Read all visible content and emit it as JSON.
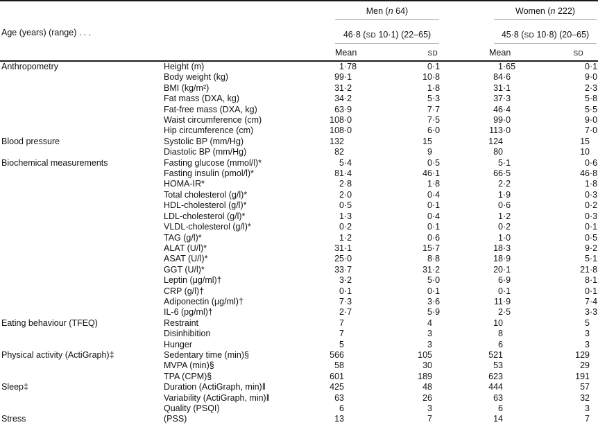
{
  "colors": {
    "heavy_rule": "#1a1a1a",
    "light_rule": "#a8a8a8",
    "text": "#111111",
    "background": "#ffffff"
  },
  "header": {
    "age_row_label": "Age (years) (range) . . .",
    "groups": [
      {
        "id": "men",
        "title_pre": "Men (",
        "title_n": "n",
        "title_post": " 64)",
        "age_pre": "46·8 (",
        "age_sc": "SD",
        "age_post": " 10·1) (22–65)"
      },
      {
        "id": "women",
        "title_pre": "Women (",
        "title_n": "n",
        "title_post": " 222)",
        "age_pre": "45·8 (",
        "age_sc": "SD",
        "age_post": " 10·8) (20–65)"
      }
    ],
    "stat_headers": {
      "mean": "Mean",
      "sd": "SD"
    }
  },
  "value_column_names": [
    "men-mean-value",
    "men-sd-value",
    "women-mean-value",
    "women-sd-value"
  ],
  "sections": [
    {
      "category": "Anthropometry",
      "rows": [
        {
          "variable": "Height (m)",
          "values": [
            "1·78",
            "0·1",
            "1·65",
            "0·1"
          ]
        },
        {
          "variable": "Body weight (kg)",
          "values": [
            "99·1",
            "10·8",
            "84·6",
            "9·0"
          ]
        },
        {
          "variable": "BMI (kg/m²)",
          "values": [
            "31·2",
            "1·8",
            "31·1",
            "2·3"
          ]
        },
        {
          "variable": "Fat mass (DXA, kg)",
          "values": [
            "34·2",
            "5·3",
            "37·3",
            "5·8"
          ]
        },
        {
          "variable": "Fat-free mass (DXA, kg)",
          "values": [
            "63·9",
            "7·7",
            "46·4",
            "5·5"
          ]
        },
        {
          "variable": "Waist circumference (cm)",
          "values": [
            "108·0",
            "7·5",
            "99·0",
            "9·0"
          ]
        },
        {
          "variable": "Hip circumference (cm)",
          "values": [
            "108·0",
            "6·0",
            "113·0",
            "7·0"
          ]
        }
      ]
    },
    {
      "category": "Blood pressure",
      "rows": [
        {
          "variable": "Systolic BP (mm/Hg)",
          "values": [
            "132",
            "15",
            "124",
            "15"
          ]
        },
        {
          "variable": "Diastolic BP (mm/Hg)",
          "values": [
            "82",
            "9",
            "80",
            "10"
          ]
        }
      ]
    },
    {
      "category": "Biochemical measurements",
      "rows": [
        {
          "variable": "Fasting glucose (mmol/l)*",
          "values": [
            "5·4",
            "0·5",
            "5·1",
            "0·6"
          ]
        },
        {
          "variable": "Fasting insulin (pmol/l)*",
          "values": [
            "81·4",
            "46·1",
            "66·5",
            "46·8"
          ]
        },
        {
          "variable": "HOMA-IR*",
          "values": [
            "2·8",
            "1·8",
            "2·2",
            "1·8"
          ]
        },
        {
          "variable": "Total cholesterol (g/l)*",
          "values": [
            "2·0",
            "0·4",
            "1·9",
            "0·3"
          ]
        },
        {
          "variable": "HDL-cholesterol (g/l)*",
          "values": [
            "0·5",
            "0·1",
            "0·6",
            "0·2"
          ]
        },
        {
          "variable": "LDL-cholesterol (g/l)*",
          "values": [
            "1·3",
            "0·4",
            "1·2",
            "0·3"
          ]
        },
        {
          "variable": "VLDL-cholesterol (g/l)*",
          "values": [
            "0·2",
            "0·1",
            "0·2",
            "0·1"
          ]
        },
        {
          "variable": "TAG (g/l)*",
          "values": [
            "1·2",
            "0·6",
            "1·0",
            "0·5"
          ]
        },
        {
          "variable": "ALAT (U/l)*",
          "values": [
            "31·1",
            "15·7",
            "18·3",
            "9·2"
          ]
        },
        {
          "variable": "ASAT (U/l)*",
          "values": [
            "25·0",
            "8·8",
            "18·9",
            "5·1"
          ]
        },
        {
          "variable": "GGT (U/l)*",
          "values": [
            "33·7",
            "31·2",
            "20·1",
            "21·8"
          ]
        },
        {
          "variable": "Leptin (μg/ml)†",
          "values": [
            "3·2",
            "5·0",
            "6·9",
            "8·1"
          ]
        },
        {
          "variable": "CRP (g/l)†",
          "values": [
            "0·1",
            "0·1",
            "0·1",
            "0·1"
          ]
        },
        {
          "variable": "Adiponectin (μg/ml)†",
          "values": [
            "7·3",
            "3·6",
            "11·9",
            "7·4"
          ]
        },
        {
          "variable": "IL-6 (pg/ml)†",
          "values": [
            "2·7",
            "5·9",
            "2·5",
            "3·3"
          ]
        }
      ]
    },
    {
      "category": "Eating behaviour (TFEQ)",
      "rows": [
        {
          "variable": "Restraint",
          "values": [
            "7",
            "4",
            "10",
            "5"
          ]
        },
        {
          "variable": "Disinhibition",
          "values": [
            "7",
            "3",
            "8",
            "3"
          ]
        },
        {
          "variable": "Hunger",
          "values": [
            "5",
            "3",
            "6",
            "3"
          ]
        }
      ]
    },
    {
      "category": "Physical activity (ActiGraph)‡",
      "rows": [
        {
          "variable": "Sedentary time (min)§",
          "values": [
            "566",
            "105",
            "521",
            "129"
          ]
        },
        {
          "variable": "MVPA (min)§",
          "values": [
            "58",
            "30",
            "53",
            "29"
          ]
        },
        {
          "variable": "TPA (CPM)§",
          "values": [
            "601",
            "189",
            "623",
            "191"
          ]
        }
      ]
    },
    {
      "category": "Sleep‡",
      "rows": [
        {
          "variable": "Duration (ActiGraph, min)‖",
          "values": [
            "425",
            "48",
            "444",
            "57"
          ]
        },
        {
          "variable": "Variability (ActiGraph, min)‖",
          "values": [
            "63",
            "26",
            "63",
            "32"
          ]
        },
        {
          "variable": "Quality (PSQI)",
          "values": [
            "6",
            "3",
            "6",
            "3"
          ]
        }
      ]
    },
    {
      "category": "Stress",
      "rows": [
        {
          "variable": "(PSS)",
          "values": [
            "13",
            "7",
            "14",
            "7"
          ]
        }
      ]
    }
  ]
}
